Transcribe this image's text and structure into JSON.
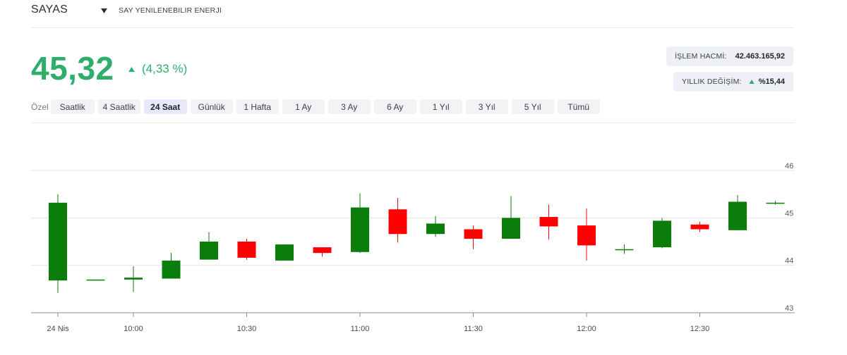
{
  "header": {
    "symbol": "SAYAS",
    "company": "SAY YENILENEBILIR ENERJI"
  },
  "quote": {
    "price": "45,32",
    "change": "(4,33 %)"
  },
  "stats": {
    "volume_label": "İŞLEM HACMİ:",
    "volume_value": "42.463.165,92",
    "yearly_label": "YILLIK DEĞİŞİM:",
    "yearly_value": "%15,44"
  },
  "ranges": {
    "custom_label": "Özel",
    "items": [
      "Saatlik",
      "4 Saatlik",
      "24 Saat",
      "Günlük",
      "1 Hafta",
      "1 Ay",
      "3 Ay",
      "6 Ay",
      "1 Yıl",
      "3 Yıl",
      "5 Yıl",
      "Tümü"
    ],
    "active": "24 Saat"
  },
  "colors": {
    "up": "#0a7d0a",
    "down": "#ff0000",
    "accent": "#2fae6b"
  },
  "chart_data": {
    "type": "candlestick",
    "interval_minutes": 10,
    "ylim": [
      43,
      46
    ],
    "yticks": [
      43,
      44,
      45,
      46
    ],
    "xticks": [
      "24 Nis",
      "10:00",
      "10:30",
      "11:00",
      "11:30",
      "12:00",
      "12:30"
    ],
    "xtick_times": [
      "09:40",
      "10:00",
      "10:30",
      "11:00",
      "11:30",
      "12:00",
      "12:30"
    ],
    "candles": [
      {
        "time": "09:40",
        "open": 43.68,
        "high": 45.5,
        "low": 43.42,
        "close": 45.32
      },
      {
        "time": "09:50",
        "open": 43.7,
        "high": 43.7,
        "low": 43.7,
        "close": 43.7
      },
      {
        "time": "10:00",
        "open": 43.7,
        "high": 43.98,
        "low": 43.44,
        "close": 43.74
      },
      {
        "time": "10:10",
        "open": 43.72,
        "high": 44.26,
        "low": 43.72,
        "close": 44.1
      },
      {
        "time": "10:20",
        "open": 44.12,
        "high": 44.7,
        "low": 44.12,
        "close": 44.5
      },
      {
        "time": "10:30",
        "open": 44.5,
        "high": 44.56,
        "low": 44.12,
        "close": 44.16
      },
      {
        "time": "10:40",
        "open": 44.1,
        "high": 44.44,
        "low": 44.1,
        "close": 44.44
      },
      {
        "time": "10:50",
        "open": 44.38,
        "high": 44.38,
        "low": 44.18,
        "close": 44.26
      },
      {
        "time": "11:00",
        "open": 44.28,
        "high": 45.52,
        "low": 44.26,
        "close": 45.22
      },
      {
        "time": "11:10",
        "open": 45.18,
        "high": 45.42,
        "low": 44.48,
        "close": 44.66
      },
      {
        "time": "11:20",
        "open": 44.66,
        "high": 45.04,
        "low": 44.6,
        "close": 44.88
      },
      {
        "time": "11:30",
        "open": 44.76,
        "high": 44.84,
        "low": 44.34,
        "close": 44.56
      },
      {
        "time": "11:40",
        "open": 44.56,
        "high": 45.46,
        "low": 44.56,
        "close": 45.0
      },
      {
        "time": "11:50",
        "open": 45.02,
        "high": 45.28,
        "low": 44.54,
        "close": 44.82
      },
      {
        "time": "12:00",
        "open": 44.84,
        "high": 45.2,
        "low": 44.1,
        "close": 44.42
      },
      {
        "time": "12:10",
        "open": 44.34,
        "high": 44.44,
        "low": 44.24,
        "close": 44.34
      },
      {
        "time": "12:20",
        "open": 44.38,
        "high": 45.0,
        "low": 44.36,
        "close": 44.94
      },
      {
        "time": "12:30",
        "open": 44.86,
        "high": 44.92,
        "low": 44.7,
        "close": 44.76
      },
      {
        "time": "12:40",
        "open": 44.74,
        "high": 45.48,
        "low": 44.74,
        "close": 45.34
      },
      {
        "time": "12:50",
        "open": 45.3,
        "high": 45.36,
        "low": 45.28,
        "close": 45.32
      }
    ]
  }
}
